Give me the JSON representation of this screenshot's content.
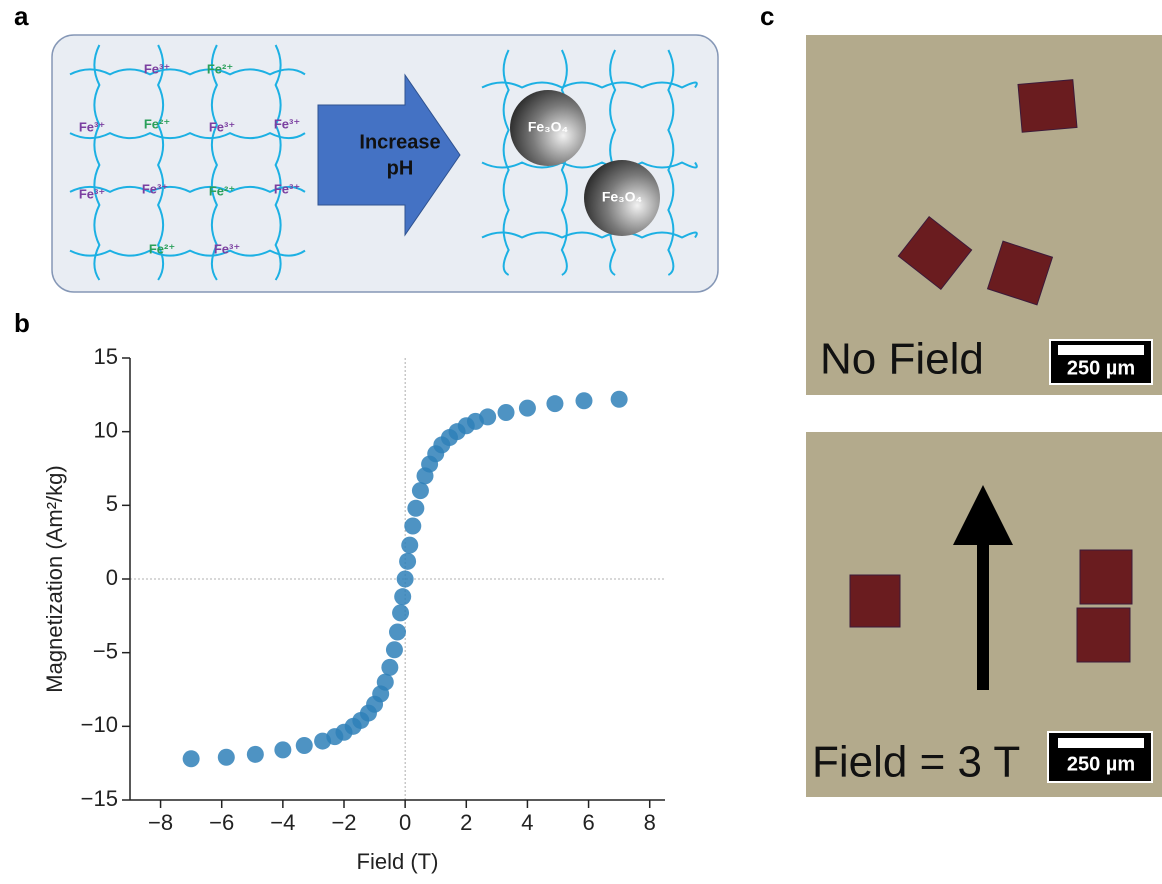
{
  "panel_labels": [
    "a",
    "b",
    "c"
  ],
  "panel_a": {
    "ions_left": [
      "Fe³⁺",
      "Fe²⁺",
      "Fe³⁺",
      "Fe²⁺",
      "Fe³⁺",
      "Fe³⁺",
      "Fe³⁺",
      "Fe³⁺",
      "Fe²⁺",
      "Fe³⁺",
      "Fe²⁺",
      "Fe³⁺"
    ],
    "arrow_text": [
      "Increase",
      "pH"
    ],
    "particles": [
      "Fe₃O₄",
      "Fe₃O₄"
    ]
  },
  "chart_data": {
    "type": "scatter",
    "xlabel": "Field (T)",
    "ylabel": "Magnetization (Am²/kg)",
    "color": "#2f80b9",
    "x": [
      -7,
      -5.85,
      -4.9,
      -4,
      -3.3,
      -2.7,
      -2.3,
      -2,
      -1.7,
      -1.45,
      -1.2,
      -1,
      -0.8,
      -0.65,
      -0.5,
      -0.35,
      -0.25,
      -0.15,
      -0.08,
      0,
      0.08,
      0.15,
      0.25,
      0.35,
      0.5,
      0.65,
      0.8,
      1,
      1.2,
      1.45,
      1.7,
      2,
      2.3,
      2.7,
      3.3,
      4,
      4.9,
      5.85,
      7
    ],
    "values": [
      -12.2,
      -12.1,
      -11.9,
      -11.6,
      -11.3,
      -11,
      -10.7,
      -10.4,
      -10,
      -9.6,
      -9.1,
      -8.5,
      -7.8,
      -7,
      -6,
      -4.8,
      -3.6,
      -2.3,
      -1.2,
      0,
      1.2,
      2.3,
      3.6,
      4.8,
      6,
      7,
      7.8,
      8.5,
      9.1,
      9.6,
      10,
      10.4,
      10.7,
      11,
      11.3,
      11.6,
      11.9,
      12.1,
      12.2
    ],
    "xlim": [
      -9,
      8.5
    ],
    "ylim": [
      -15,
      15
    ],
    "xticks": [
      {
        "value": -8,
        "label": "−8"
      },
      {
        "value": -6,
        "label": "−6"
      },
      {
        "value": -4,
        "label": "−4"
      },
      {
        "value": -2,
        "label": "−2"
      },
      0,
      2,
      4,
      6,
      8
    ],
    "yticks": [
      {
        "value": -15,
        "label": "−15"
      },
      {
        "value": -10,
        "label": "−10"
      },
      {
        "value": -5,
        "label": "−5"
      },
      0,
      5,
      10,
      15
    ],
    "zero_lines": true
  },
  "panel_c": {
    "top_caption": "No Field",
    "bottom_caption": "Field = 3 T",
    "scale_bar": [
      "250 µm",
      "250 µm"
    ]
  }
}
